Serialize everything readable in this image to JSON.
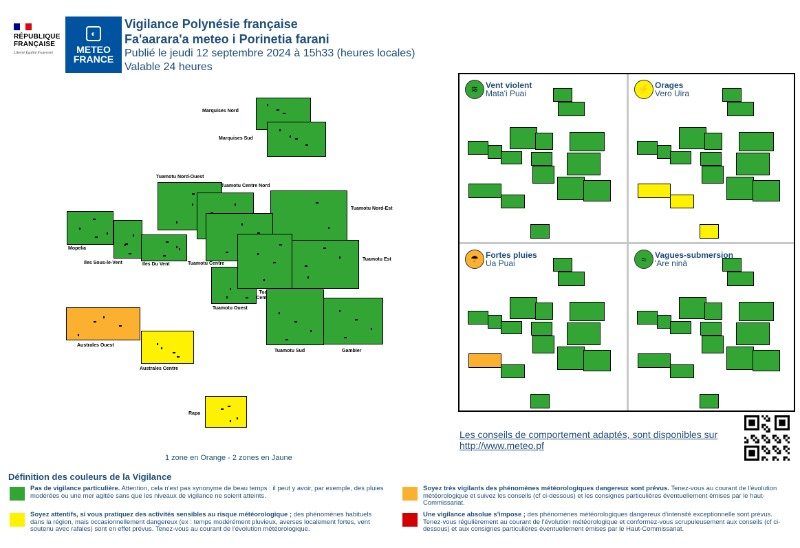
{
  "header": {
    "republic_name": "RÉPUBLIQUE FRANÇAISE",
    "republic_motto": "Liberté Égalité Fraternité",
    "meteo_logo_text": "METEO FRANCE",
    "title": "Vigilance Polynésie française",
    "title_tahitian": "Fa'aarara'a meteo i Porinetia farani",
    "published": "Publié le jeudi 12 septembre 2024 à 15h33 (heures locales)",
    "validity": "Valable 24 heures"
  },
  "colors": {
    "green": "#33a534",
    "yellow": "#fff200",
    "orange": "#fbb02f",
    "red": "#d20000",
    "navy": "#1f4e79",
    "meteo_blue": "#00549f"
  },
  "zones": [
    {
      "name": "Marquises Nord",
      "level": "green"
    },
    {
      "name": "Marquises Sud",
      "level": "green"
    },
    {
      "name": "Tuamotu Nord-Ouest",
      "level": "green"
    },
    {
      "name": "Tuamotu Centre Nord",
      "level": "green"
    },
    {
      "name": "Tuamotu Nord-Est",
      "level": "green"
    },
    {
      "name": "Mopelia",
      "level": "green"
    },
    {
      "name": "Iles Sous-le-Vent",
      "level": "green"
    },
    {
      "name": "Iles Du Vent",
      "level": "green"
    },
    {
      "name": "Tuamotu Centre",
      "level": "green"
    },
    {
      "name": "Tuamotu Est",
      "level": "green"
    },
    {
      "name": "Tuamotu Ouest",
      "level": "green"
    },
    {
      "name": "Tuamotu Centre Sud",
      "level": "green"
    },
    {
      "name": "Australes Ouest",
      "level": "orange"
    },
    {
      "name": "Australes Centre",
      "level": "yellow"
    },
    {
      "name": "Tuamotu Sud",
      "level": "green"
    },
    {
      "name": "Gambier",
      "level": "green"
    },
    {
      "name": "Rapa",
      "level": "yellow"
    }
  ],
  "summary": "1 zone en Orange - 2 zones en Jaune",
  "phenomena": [
    {
      "name": "Vent violent",
      "tahitian": "Mata'i Puai",
      "icon": "wind-icon",
      "level": "green"
    },
    {
      "name": "Orages",
      "tahitian": "Vero Uira",
      "icon": "lightning-icon",
      "level": "yellow"
    },
    {
      "name": "Fortes pluies",
      "tahitian": "Ua Puai",
      "icon": "rain-icon",
      "level": "orange"
    },
    {
      "name": "Vagues-submersion",
      "tahitian": "'Are ninā",
      "icon": "wave-icon",
      "level": "green"
    }
  ],
  "advice": {
    "line1": "Les conseils de comportement adaptés, sont disponibles sur",
    "link": "http://www.meteo.pf"
  },
  "legend": {
    "title": "Définition des couleurs de la Vigilance",
    "items": [
      {
        "color": "green",
        "bold": "Pas de vigilance particulière.",
        "text": " Attention, cela n'est pas synonyme de beau temps : il peut y avoir, par exemple, des pluies modérées ou une mer agitée sans que les niveaux de vigilance ne soient atteints."
      },
      {
        "color": "orange",
        "bold": "Soyez très vigilants des phénomènes météorologiques dangereux sont prévus.",
        "text": " Tenez-vous au courant de l'évolution météorologique et suivez les conseils (cf ci-dessous) et les consignes particulières éventuellement émises par le haut-Commissariat."
      },
      {
        "color": "yellow",
        "bold": "Soyez attentifs, si vous pratiquez des activités sensibles au risque météorologique ;",
        "text": " des phénomènes habituels dans la région, mais occasionnellement dangereux (ex : temps modérément pluvieux, averses localement fortes, vent soutenu avec rafales) sont en effet prévus. Tenez-vous au courant de l'évolution météorologique."
      },
      {
        "color": "red",
        "bold": "Une vigilance absolue s'impose ;",
        "text": " des phénomènes météorologiques dangereux d'intensité exceptionnelle sont prévus. Tenez-vous régulièrement au courant de l'évolution météorologique et conformez-vous scrupuleusement aux conseils (cf ci-dessous) et aux consignes particulières éventuellement émises par le Haut-Commissariat."
      }
    ]
  }
}
